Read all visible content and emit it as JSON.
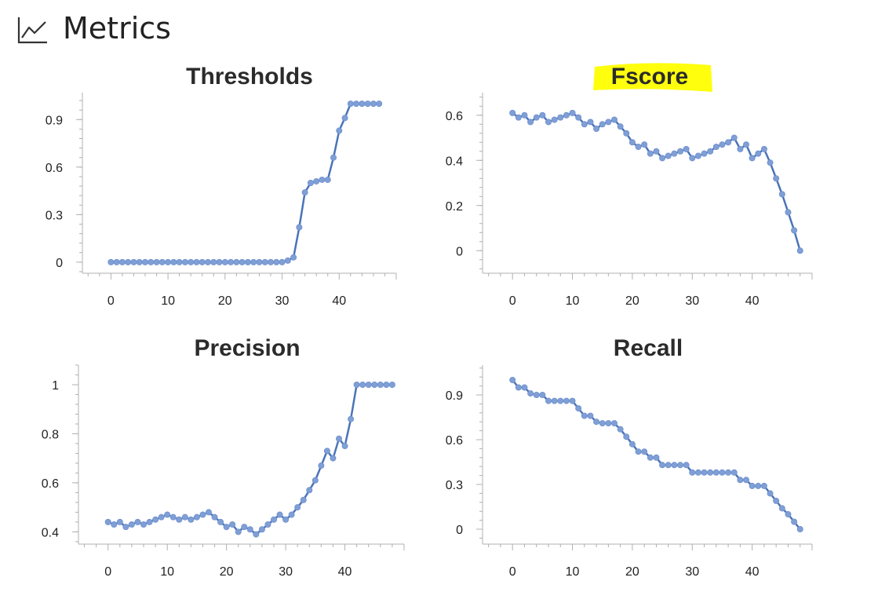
{
  "header": {
    "title": "Metrics",
    "icon": "line-chart-icon"
  },
  "colors": {
    "series": "#4a74b8",
    "marker": "#7f9fd6",
    "highlight": "#ffff00"
  },
  "chart_data": [
    {
      "type": "line",
      "title": "Thresholds",
      "highlighted": false,
      "xlabel": "",
      "ylabel": "",
      "xlim": [
        -5,
        50
      ],
      "ylim": [
        -0.07,
        1.07
      ],
      "xticks": [
        0,
        10,
        20,
        30,
        40
      ],
      "yticks": [
        0,
        0.3,
        0.6,
        0.9
      ],
      "ytick_labels": [
        "0",
        "0.3",
        "0.6",
        "0.9"
      ],
      "grid": false,
      "x": [
        0,
        1,
        2,
        3,
        4,
        5,
        6,
        7,
        8,
        9,
        10,
        11,
        12,
        13,
        14,
        15,
        16,
        17,
        18,
        19,
        20,
        21,
        22,
        23,
        24,
        25,
        26,
        27,
        28,
        29,
        30,
        31,
        32,
        33,
        34,
        35,
        36,
        37,
        38,
        39,
        40,
        41,
        42,
        43,
        44,
        45,
        46,
        47
      ],
      "series": [
        {
          "values": [
            0,
            0,
            0,
            0,
            0,
            0,
            0,
            0,
            0,
            0,
            0,
            0,
            0,
            0,
            0,
            0,
            0,
            0,
            0,
            0,
            0,
            0,
            0,
            0,
            0,
            0,
            0,
            0,
            0,
            0,
            0,
            0.01,
            0.03,
            0.22,
            0.44,
            0.5,
            0.51,
            0.52,
            0.52,
            0.66,
            0.83,
            0.91,
            1.0,
            1.0,
            1.0,
            1.0,
            1.0,
            1.0
          ]
        }
      ]
    },
    {
      "type": "line",
      "title": "Fscore",
      "highlighted": true,
      "xlabel": "",
      "ylabel": "",
      "xlim": [
        -5,
        50
      ],
      "ylim": [
        -0.1,
        0.7
      ],
      "xticks": [
        0,
        10,
        20,
        30,
        40
      ],
      "yticks": [
        0,
        0.2,
        0.4,
        0.6
      ],
      "ytick_labels": [
        "0",
        "0.2",
        "0.4",
        "0.6"
      ],
      "grid": false,
      "x": [
        0,
        1,
        2,
        3,
        4,
        5,
        6,
        7,
        8,
        9,
        10,
        11,
        12,
        13,
        14,
        15,
        16,
        17,
        18,
        19,
        20,
        21,
        22,
        23,
        24,
        25,
        26,
        27,
        28,
        29,
        30,
        31,
        32,
        33,
        34,
        35,
        36,
        37,
        38,
        39,
        40,
        41,
        42,
        43,
        44,
        45,
        46,
        47,
        48
      ],
      "series": [
        {
          "values": [
            0.61,
            0.59,
            0.6,
            0.57,
            0.59,
            0.6,
            0.57,
            0.58,
            0.59,
            0.6,
            0.61,
            0.59,
            0.56,
            0.57,
            0.54,
            0.56,
            0.57,
            0.58,
            0.55,
            0.52,
            0.48,
            0.46,
            0.47,
            0.43,
            0.44,
            0.41,
            0.42,
            0.43,
            0.44,
            0.45,
            0.41,
            0.42,
            0.43,
            0.44,
            0.46,
            0.47,
            0.48,
            0.5,
            0.45,
            0.47,
            0.41,
            0.43,
            0.45,
            0.39,
            0.32,
            0.25,
            0.17,
            0.09,
            0.0
          ]
        }
      ]
    },
    {
      "type": "line",
      "title": "Precision",
      "highlighted": false,
      "xlabel": "",
      "ylabel": "",
      "xlim": [
        -5,
        50
      ],
      "ylim": [
        0.35,
        1.08
      ],
      "xticks": [
        0,
        10,
        20,
        30,
        40
      ],
      "yticks": [
        0.4,
        0.6,
        0.8,
        1.0
      ],
      "ytick_labels": [
        "0.4",
        "0.6",
        "0.8",
        "1"
      ],
      "grid": false,
      "x": [
        0,
        1,
        2,
        3,
        4,
        5,
        6,
        7,
        8,
        9,
        10,
        11,
        12,
        13,
        14,
        15,
        16,
        17,
        18,
        19,
        20,
        21,
        22,
        23,
        24,
        25,
        26,
        27,
        28,
        29,
        30,
        31,
        32,
        33,
        34,
        35,
        36,
        37,
        38,
        39,
        40,
        41,
        42,
        43,
        44,
        45,
        46,
        47,
        48
      ],
      "series": [
        {
          "values": [
            0.44,
            0.43,
            0.44,
            0.42,
            0.43,
            0.44,
            0.43,
            0.44,
            0.45,
            0.46,
            0.47,
            0.46,
            0.45,
            0.46,
            0.45,
            0.46,
            0.47,
            0.48,
            0.46,
            0.44,
            0.42,
            0.43,
            0.4,
            0.42,
            0.41,
            0.39,
            0.41,
            0.43,
            0.45,
            0.47,
            0.45,
            0.47,
            0.5,
            0.53,
            0.57,
            0.61,
            0.67,
            0.73,
            0.7,
            0.78,
            0.75,
            0.86,
            1.0,
            1.0,
            1.0,
            1.0,
            1.0,
            1.0,
            1.0
          ]
        }
      ]
    },
    {
      "type": "line",
      "title": "Recall",
      "highlighted": false,
      "xlabel": "",
      "ylabel": "",
      "xlim": [
        -5,
        50
      ],
      "ylim": [
        -0.1,
        1.1
      ],
      "xticks": [
        0,
        10,
        20,
        30,
        40
      ],
      "yticks": [
        0,
        0.3,
        0.6,
        0.9
      ],
      "ytick_labels": [
        "0",
        "0.3",
        "0.6",
        "0.9"
      ],
      "grid": false,
      "x": [
        0,
        1,
        2,
        3,
        4,
        5,
        6,
        7,
        8,
        9,
        10,
        11,
        12,
        13,
        14,
        15,
        16,
        17,
        18,
        19,
        20,
        21,
        22,
        23,
        24,
        25,
        26,
        27,
        28,
        29,
        30,
        31,
        32,
        33,
        34,
        35,
        36,
        37,
        38,
        39,
        40,
        41,
        42,
        43,
        44,
        45,
        46,
        47,
        48
      ],
      "series": [
        {
          "values": [
            1.0,
            0.95,
            0.95,
            0.91,
            0.9,
            0.9,
            0.86,
            0.86,
            0.86,
            0.86,
            0.86,
            0.81,
            0.76,
            0.76,
            0.72,
            0.71,
            0.71,
            0.71,
            0.67,
            0.62,
            0.57,
            0.52,
            0.52,
            0.48,
            0.48,
            0.43,
            0.43,
            0.43,
            0.43,
            0.43,
            0.38,
            0.38,
            0.38,
            0.38,
            0.38,
            0.38,
            0.38,
            0.38,
            0.33,
            0.33,
            0.29,
            0.29,
            0.29,
            0.24,
            0.19,
            0.14,
            0.1,
            0.05,
            0.0
          ]
        }
      ]
    }
  ]
}
